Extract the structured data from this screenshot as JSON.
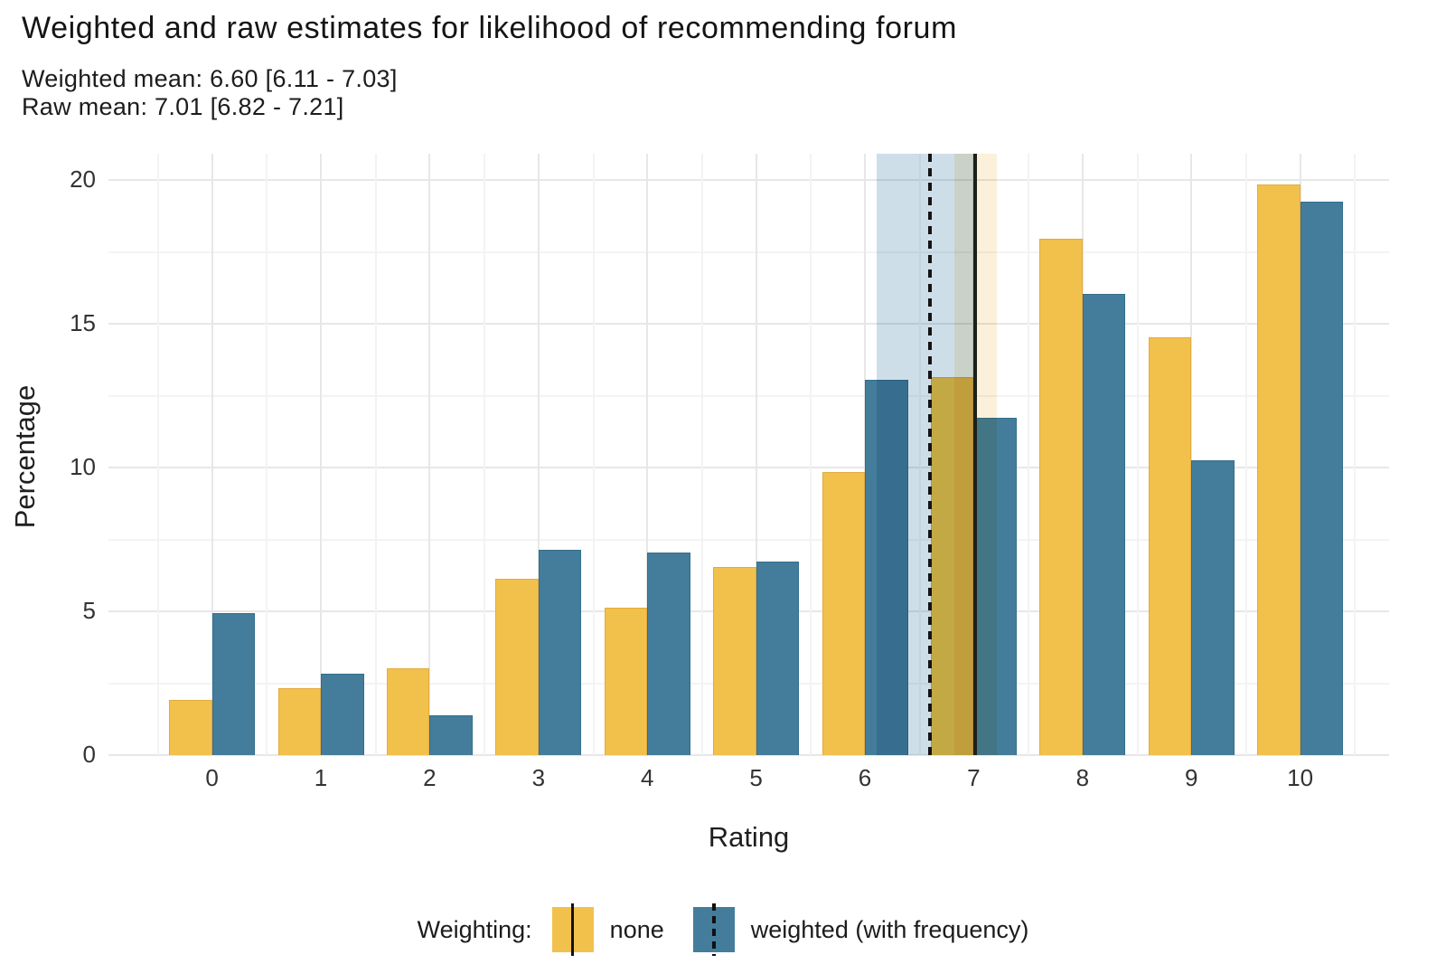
{
  "header": {
    "title": "Weighted and raw estimates for likelihood of recommending forum",
    "subtitle_line1": "Weighted mean: 6.60 [6.11 - 7.03]",
    "subtitle_line2": "Raw mean: 7.01 [6.82 - 7.21]"
  },
  "chart_data": {
    "type": "bar",
    "title": "Weighted and raw estimates for likelihood of recommending forum",
    "xlabel": "Rating",
    "ylabel": "Percentage",
    "categories": [
      0,
      1,
      2,
      3,
      4,
      5,
      6,
      7,
      8,
      9,
      10
    ],
    "series": [
      {
        "name": "none",
        "color": "#F2C14C",
        "values": [
          1.9,
          2.3,
          3.0,
          6.1,
          5.1,
          6.5,
          9.8,
          13.1,
          17.9,
          14.5,
          19.8
        ]
      },
      {
        "name": "weighted (with frequency)",
        "color": "#447D9B",
        "values": [
          4.9,
          2.8,
          1.35,
          7.1,
          7.0,
          6.7,
          13.0,
          11.7,
          16.0,
          10.2,
          19.2
        ]
      }
    ],
    "ylim": [
      0,
      20.9
    ],
    "yticks": [
      0,
      5,
      10,
      15,
      20
    ],
    "yticks_minor": [
      2.5,
      7.5,
      12.5,
      17.5
    ],
    "grid": "on",
    "legend_position": "bottom",
    "annotations": {
      "weighted_mean": {
        "label": "Weighted mean",
        "value": 6.6,
        "ci_low": 6.11,
        "ci_high": 7.03,
        "line_style": "dashed",
        "band_color": "#CEDEE9"
      },
      "raw_mean": {
        "label": "Raw mean",
        "value": 7.01,
        "ci_low": 6.82,
        "ci_high": 7.21,
        "line_style": "solid",
        "band_color": "#FBF0D9"
      }
    },
    "mean_line_color": "#161616"
  },
  "legend": {
    "label": "Weighting:",
    "items": [
      {
        "label": "none",
        "swatch_color": "#F2C14C",
        "line_style": "solid"
      },
      {
        "label": "weighted (with frequency)",
        "swatch_color": "#447D9B",
        "line_style": "dashed"
      }
    ]
  }
}
